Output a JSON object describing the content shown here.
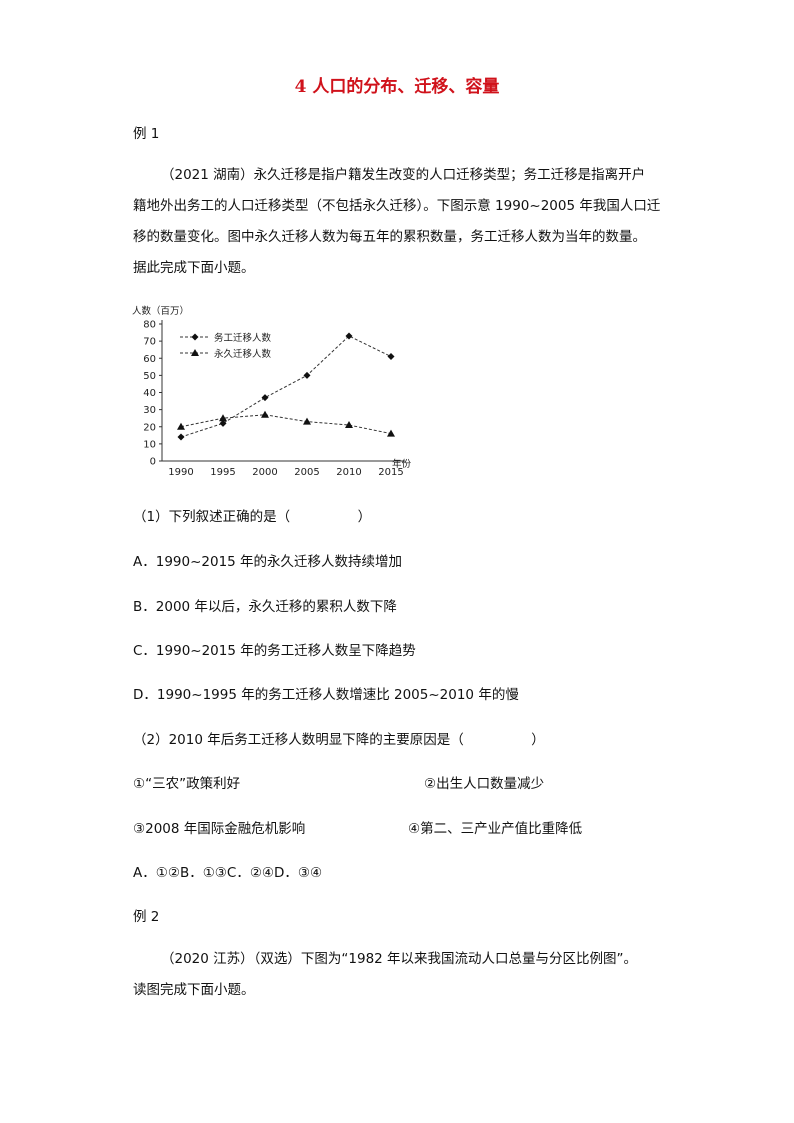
{
  "title": "4 人口的分布、迁移、容量",
  "example1": {
    "label": "例 1",
    "para_lines": [
      "（2021 湖南）永久迁移是指户籍发生改变的人口迁移类型；务工迁移是指离开户",
      "籍地外出务工的人口迁移类型（不包括永久迁移）。下图示意 1990~2005 年我国人口迁",
      "移的数量变化。图中永久迁移人数为每五年的累积数量，务工迁移人数为当年的数量。",
      "据此完成下面小题。"
    ],
    "q1": {
      "stem": "（1）下列叙述正确的是（　　　　　）",
      "options": [
        "A．1990~2015 年的永久迁移人数持续增加",
        "B．2000 年以后，永久迁移的累积人数下降",
        "C．1990~2015 年的务工迁移人数呈下降趋势",
        "D．1990~1995 年的务工迁移人数增速比 2005~2010 年的慢"
      ]
    },
    "q2": {
      "stem": "（2）2010 年后务工迁移人数明显下降的主要原因是（　　　　　）",
      "items": [
        "①“三农”政策利好",
        "②出生人口数量减少",
        "③2008 年国际金融危机影响",
        "④第二、三产业产值比重降低"
      ],
      "answers": "A．①②B．①③C．②④D．③④"
    }
  },
  "example2": {
    "label": "例 2",
    "para_lines": [
      "（2020 江苏）（双选）下图为“1982 年以来我国流动人口总量与分区比例图”。",
      "读图完成下面小题。"
    ]
  },
  "chart_data": {
    "type": "line",
    "ylabel": "人数（百万）",
    "xlabel": "年份",
    "x": [
      1990,
      1995,
      2000,
      2005,
      2010,
      2015
    ],
    "ylim": [
      0,
      80
    ],
    "yticks": [
      0,
      10,
      20,
      30,
      40,
      50,
      60,
      70,
      80
    ],
    "grid": false,
    "legend": "top-left",
    "series": [
      {
        "name": "务工迁移人数",
        "marker": "diamond",
        "values": [
          14,
          22,
          37,
          50,
          73,
          61
        ]
      },
      {
        "name": "永久迁移人数",
        "marker": "triangle",
        "values": [
          20,
          25,
          27,
          23,
          21,
          16
        ]
      }
    ]
  }
}
